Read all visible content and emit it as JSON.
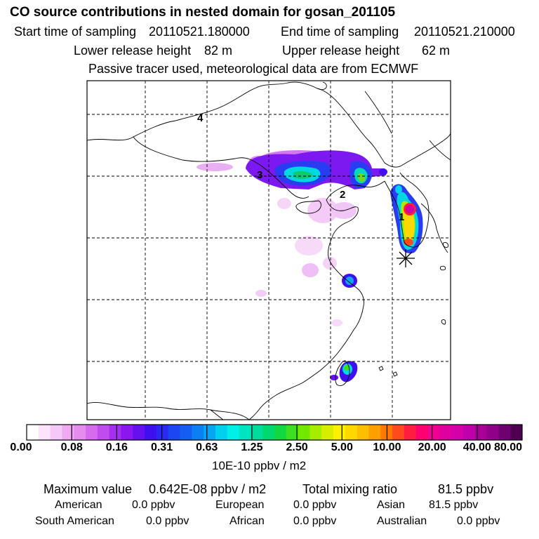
{
  "header": {
    "title": "CO  source contributions in nested domain for gosan_201105",
    "start_label": "Start time of sampling",
    "start_value": "20110521.180000",
    "end_label": "End time of sampling",
    "end_value": "20110521.210000",
    "lower_label": "Lower release height",
    "lower_value": "82 m",
    "upper_label": "Upper release height",
    "upper_value": "62 m",
    "tracer_note": "Passive tracer used, meteorological data are from ECMWF"
  },
  "map": {
    "markers": [
      "1",
      "2",
      "3",
      "4"
    ],
    "receptor_symbol": "star"
  },
  "colorbar": {
    "unit": "10E-10 ppbv / m2",
    "labels": [
      "0.00",
      "0.08",
      "0.16",
      "0.31",
      "0.63",
      "1.25",
      "2.50",
      "5.00",
      "10.00",
      "20.00",
      "40.00",
      "80.00"
    ],
    "colors": [
      "#ffffff",
      "#fce4fc",
      "#f6c8f8",
      "#efaaf2",
      "#e58cef",
      "#d66ced",
      "#c04ced",
      "#a62ef0",
      "#8a16f0",
      "#6610f0",
      "#3e10f0",
      "#2a28f2",
      "#1c46f2",
      "#145ef2",
      "#0c80f2",
      "#06a6f2",
      "#00d0f0",
      "#00f0e8",
      "#00e4c2",
      "#00dc9c",
      "#00d870",
      "#12d840",
      "#3ce020",
      "#70e800",
      "#a8ec00",
      "#d8ee00",
      "#fff000",
      "#ffd800",
      "#ffbe00",
      "#ffa000",
      "#ff7800",
      "#ff4a20",
      "#ff1c40",
      "#ff0070",
      "#f00090",
      "#e000a0",
      "#d400a8",
      "#c000a8",
      "#a80098",
      "#900088",
      "#700070",
      "#500050"
    ]
  },
  "stats": {
    "max_label": "Maximum value",
    "max_value": "0.642E-08 ppbv / m2",
    "total_label": "Total mixing ratio",
    "total_value": "81.5 ppbv"
  },
  "regions": [
    {
      "name": "American",
      "value": "0.0 ppbv"
    },
    {
      "name": "European",
      "value": "0.0 ppbv"
    },
    {
      "name": "Asian",
      "value": "81.5 ppbv"
    },
    {
      "name": "South American",
      "value": "0.0 ppbv"
    },
    {
      "name": "African",
      "value": "0.0 ppbv"
    },
    {
      "name": "Australian",
      "value": "0.0 ppbv"
    }
  ]
}
